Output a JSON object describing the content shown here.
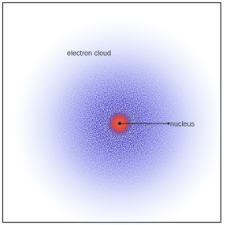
{
  "labels": {
    "cloud": "electron cloud",
    "nucleus": "nucleus"
  }
}
